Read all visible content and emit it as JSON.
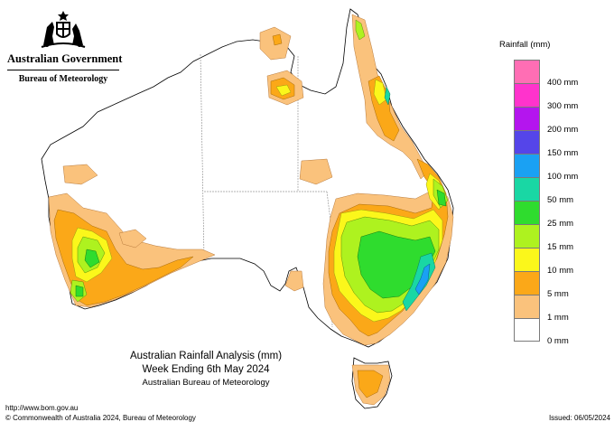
{
  "header": {
    "government": "Australian Government",
    "bureau": "Bureau of Meteorology"
  },
  "legend": {
    "title": "Rainfall (mm)",
    "items": [
      {
        "label": "",
        "color": "#ff6eb4"
      },
      {
        "label": "400 mm",
        "color": "#ff33cc"
      },
      {
        "label": "300 mm",
        "color": "#b415ee"
      },
      {
        "label": "200 mm",
        "color": "#5545e9"
      },
      {
        "label": "150 mm",
        "color": "#1aa1f3"
      },
      {
        "label": "100 mm",
        "color": "#19d7a4"
      },
      {
        "label": "50 mm",
        "color": "#2fdc2e"
      },
      {
        "label": "25 mm",
        "color": "#aef21f"
      },
      {
        "label": "15 mm",
        "color": "#fbf71b"
      },
      {
        "label": "10 mm",
        "color": "#fba818"
      },
      {
        "label": "5 mm",
        "color": "#fac27c"
      },
      {
        "label": "1 mm",
        "color": "#ffffff"
      },
      {
        "label": "0 mm",
        "color": ""
      }
    ]
  },
  "caption": {
    "line1": "Australian Rainfall Analysis (mm)",
    "line2": "Week Ending 6th May 2024",
    "line3": "Australian Bureau of Meteorology"
  },
  "footer": {
    "url": "http://www.bom.gov.au",
    "copyright": "© Commonwealth of Australia 2024, Bureau of Meteorology",
    "issued": "Issued: 06/05/2024"
  },
  "colors": {
    "r1": "#fac27c",
    "r5": "#fba818",
    "r10": "#fbf71b",
    "r15": "#aef21f",
    "r25": "#2fdc2e",
    "r50": "#19d7a4",
    "r100": "#1aa1f3",
    "outline": "#000000",
    "border": "#9a9a9a"
  }
}
